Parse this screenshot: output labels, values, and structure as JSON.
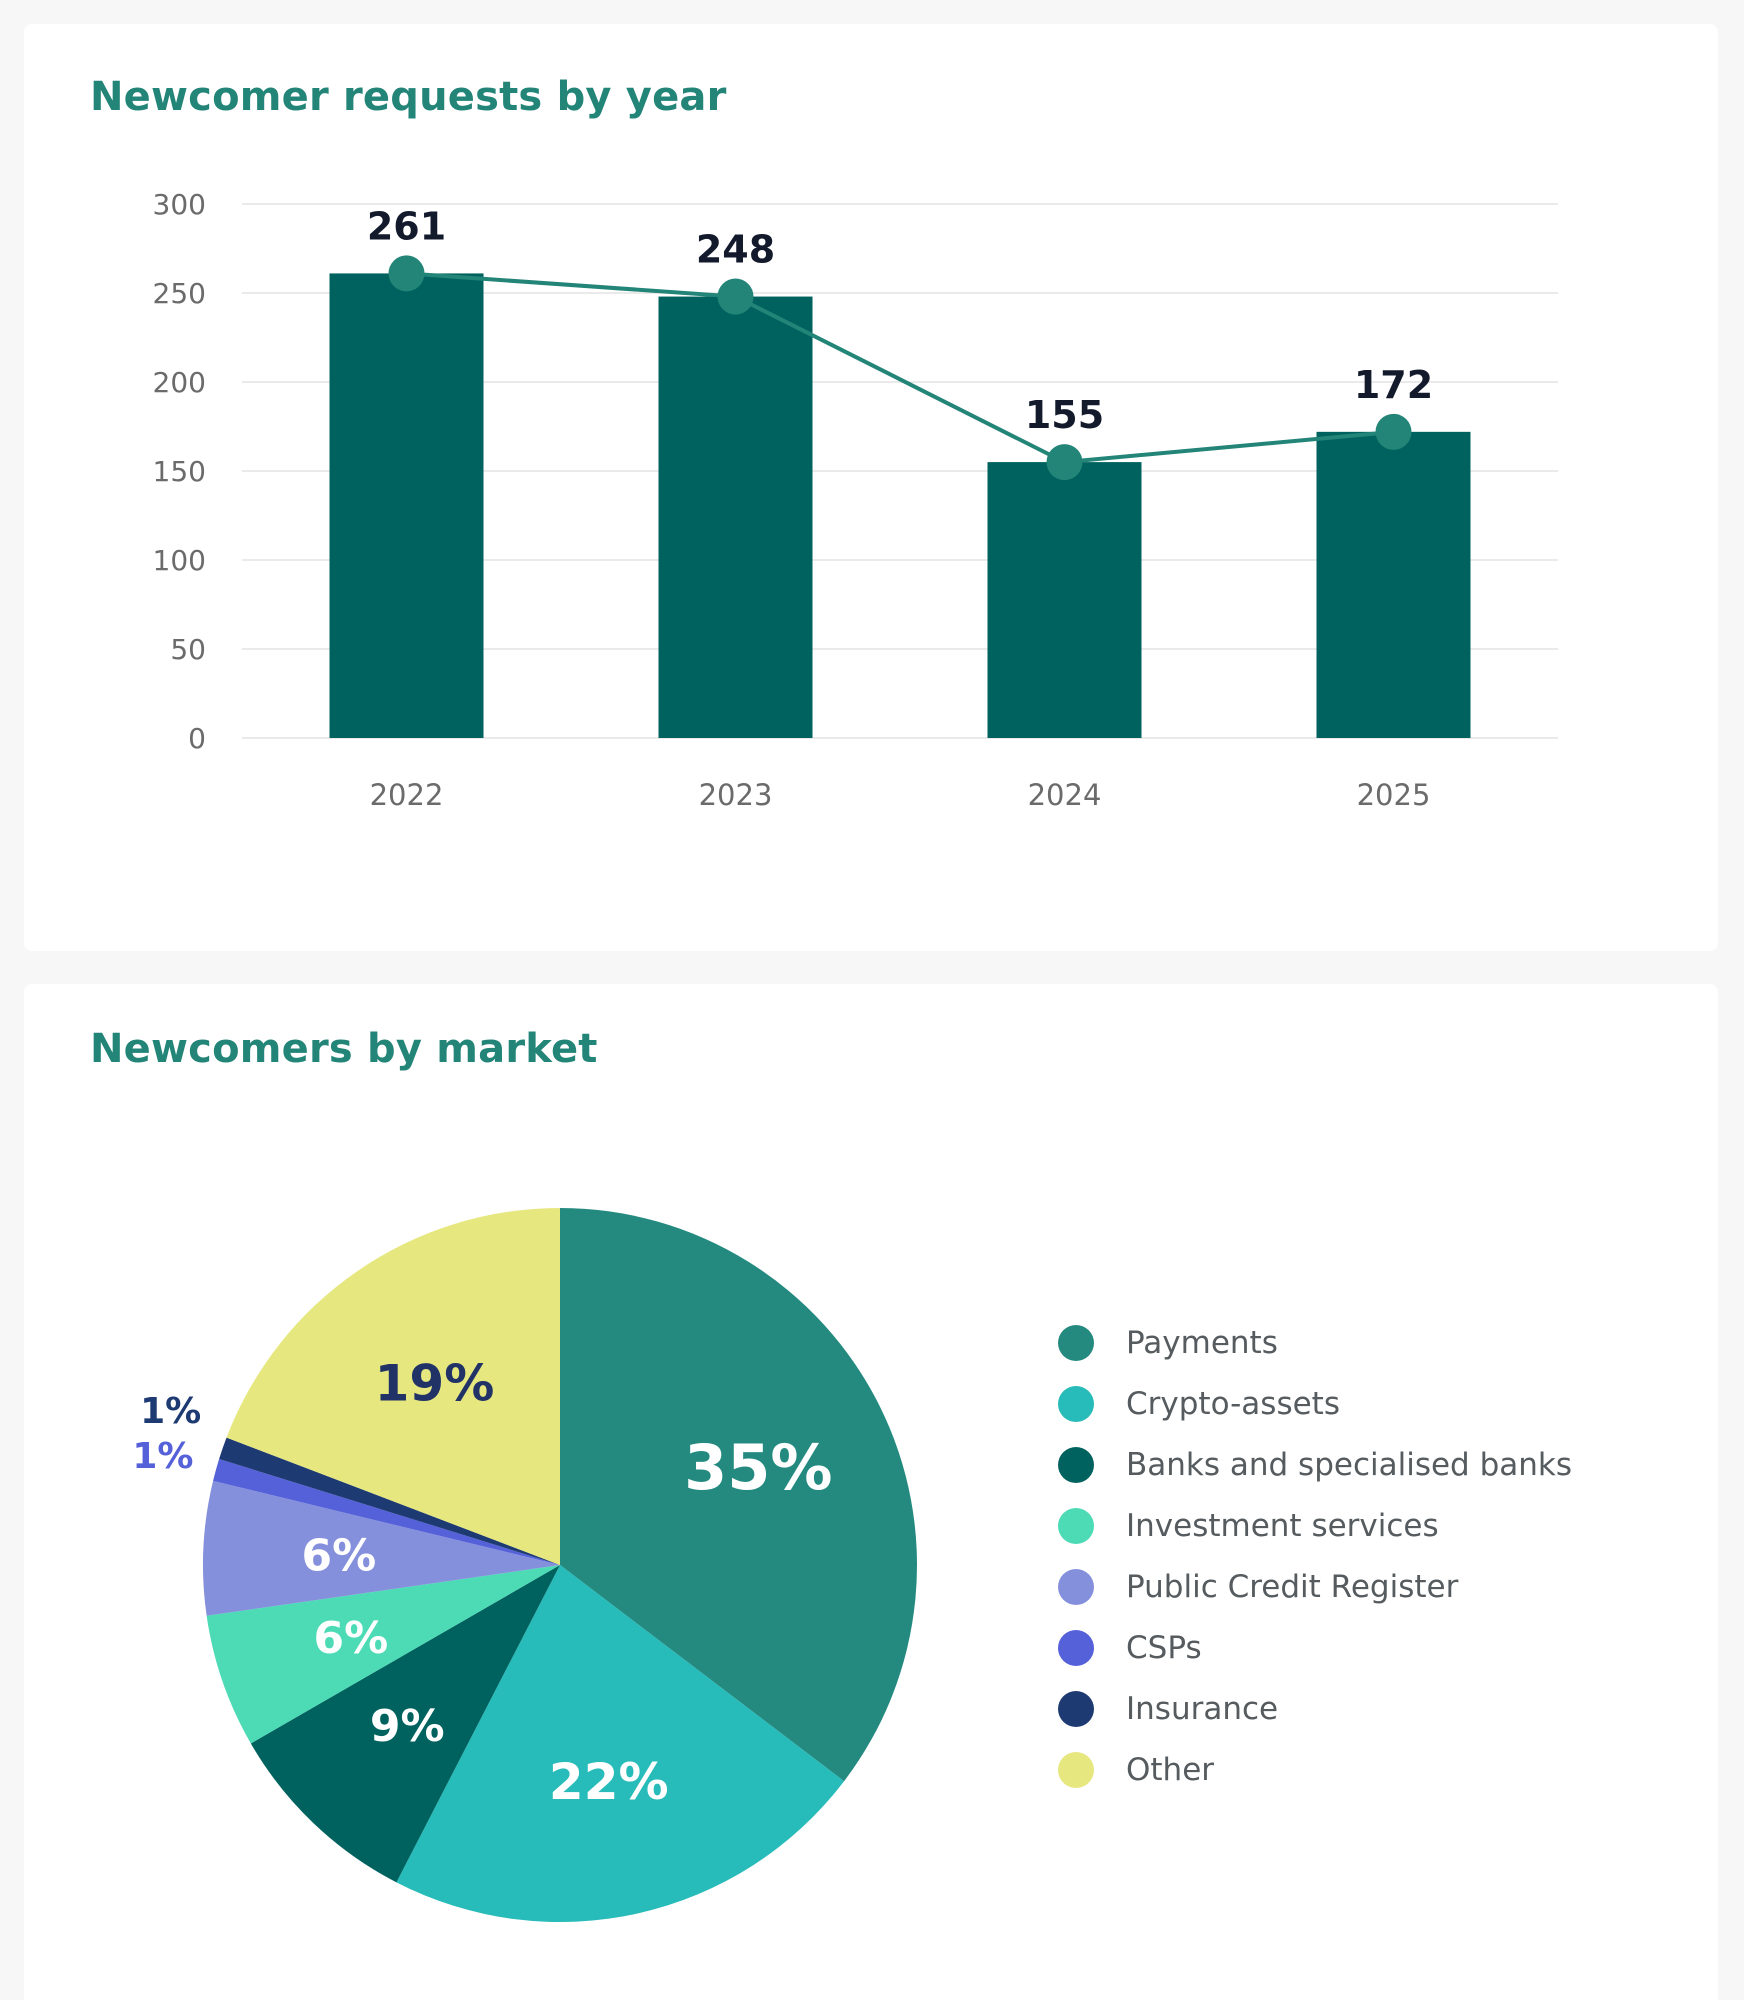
{
  "bar_card": {
    "title": "Newcomer requests by year"
  },
  "pie_card": {
    "title": "Newcomers by market"
  },
  "colors": {
    "bar": "#00625e",
    "line": "#238478",
    "grid": "#dedede",
    "tick_text": "#6b6b6b",
    "data_label": "#121a2c",
    "title": "#238478"
  },
  "chart_data": [
    {
      "type": "bar",
      "categories": [
        "2022",
        "2023",
        "2024",
        "2025"
      ],
      "series": [
        {
          "values": [
            261,
            248,
            155,
            172
          ]
        }
      ],
      "overlay_line": true,
      "data_labels": [
        "261",
        "248",
        "155",
        "172"
      ],
      "ylim": [
        0,
        300
      ],
      "yticks": [
        "0",
        "50",
        "100",
        "150",
        "200",
        "250",
        "300"
      ],
      "grid": true
    },
    {
      "type": "pie",
      "slices": [
        {
          "label": "Payments",
          "value": 35,
          "text": "35%",
          "color": "#248a80"
        },
        {
          "label": "Crypto-assets",
          "value": 22,
          "text": "22%",
          "color": "#27bbb9"
        },
        {
          "label": "Banks and specialised banks",
          "value": 9,
          "text": "9%",
          "color": "#00625e"
        },
        {
          "label": "Investment services",
          "value": 6,
          "text": "6%",
          "color": "#4ddbb6"
        },
        {
          "label": "Public Credit Register",
          "value": 6,
          "text": "6%",
          "color": "#8590dc"
        },
        {
          "label": "CSPs",
          "value": 1,
          "text": "1%",
          "color": "#5561d9"
        },
        {
          "label": "Insurance",
          "value": 1,
          "text": "1%",
          "color": "#1d3a73"
        },
        {
          "label": "Other",
          "value": 19,
          "text": "19%",
          "color": "#e6e77f"
        }
      ],
      "start_angle": "12 o'clock",
      "direction": "clockwise",
      "legend_position": "right"
    }
  ]
}
